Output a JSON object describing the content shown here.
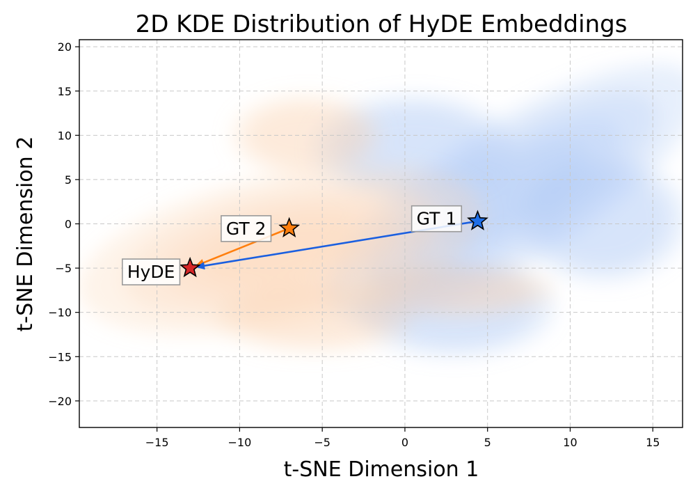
{
  "chart_data": {
    "type": "scatter",
    "title": "2D KDE Distribution of HyDE Embeddings",
    "xlabel": "t-SNE Dimension 1",
    "ylabel": "t-SNE Dimension 2",
    "xlim": [
      -19.7,
      16.8
    ],
    "ylim": [
      -23,
      20.8
    ],
    "xticks": [
      -15,
      -10,
      -5,
      0,
      5,
      10,
      15
    ],
    "yticks": [
      -20,
      -15,
      -10,
      -5,
      0,
      5,
      10,
      15,
      20
    ],
    "xtick_labels": [
      "−15",
      "−10",
      "−5",
      "0",
      "5",
      "10",
      "15"
    ],
    "ytick_labels": [
      "−20",
      "−15",
      "−10",
      "−5",
      "0",
      "5",
      "10",
      "15",
      "20"
    ],
    "grid": true,
    "points": [
      {
        "name": "HyDE",
        "label": "HyDE",
        "x": -13,
        "y": -5,
        "color": "#d62728"
      },
      {
        "name": "GT 2",
        "label": "GT 2",
        "x": -7,
        "y": -0.5,
        "color": "#ff7f0e"
      },
      {
        "name": "GT 1",
        "label": "GT 1",
        "x": 4.4,
        "y": 0.3,
        "color": "#1f6fe8"
      }
    ],
    "arrows": [
      {
        "from": "GT 2",
        "to": "HyDE",
        "color": "#ff7f0e"
      },
      {
        "from": "GT 1",
        "to": "HyDE",
        "color": "#1a5fe0"
      }
    ],
    "kde_series": [
      {
        "name": "GT 1 density",
        "color": "#a9c6f5",
        "blobs": [
          {
            "cx": 6.5,
            "cy": 3.5,
            "rx": 13.0,
            "ry": 8.0,
            "rot": -32
          },
          {
            "cx": 3.0,
            "cy": -9.5,
            "rx": 6.0,
            "ry": 5.5,
            "rot": 0
          },
          {
            "cx": 12.0,
            "cy": 0.5,
            "rx": 5.0,
            "ry": 7.0,
            "rot": 0
          },
          {
            "cx": 0.5,
            "cy": 8.5,
            "rx": 6.0,
            "ry": 6.0,
            "rot": 0
          }
        ]
      },
      {
        "name": "GT 2 density",
        "color": "#fbd3b0",
        "blobs": [
          {
            "cx": -7.5,
            "cy": -3.0,
            "rx": 12.5,
            "ry": 8.5,
            "rot": -12
          },
          {
            "cx": -5.5,
            "cy": -10.5,
            "rx": 6.0,
            "ry": 4.0,
            "rot": 0
          },
          {
            "cx": -6.0,
            "cy": 10.0,
            "rx": 4.5,
            "ry": 4.5,
            "rot": 0
          },
          {
            "cx": 3.0,
            "cy": -7.5,
            "rx": 6.0,
            "ry": 3.0,
            "rot": 0
          }
        ]
      }
    ]
  }
}
